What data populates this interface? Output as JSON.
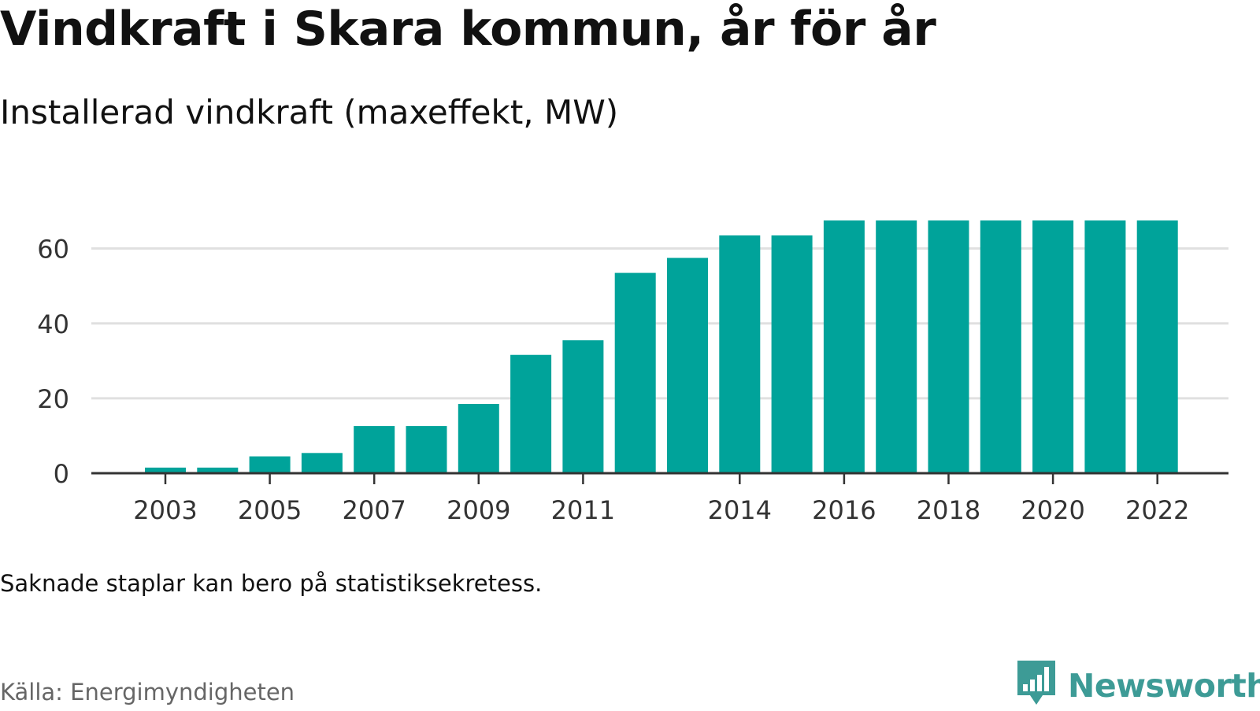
{
  "header": {
    "title": "Vindkraft i Skara kommun, år för år",
    "subtitle": "Installerad vindkraft (maxeffekt, MW)"
  },
  "footer": {
    "note": "Saknade staplar kan bero på statistiksekretess.",
    "source": "Källa: Energimyndigheten",
    "brand": "Newsworthy",
    "brand_icon": "bar-chart-speech-bubble-icon"
  },
  "colors": {
    "bar": "#00a39a",
    "grid": "#e0e0e0",
    "axis": "#333333",
    "brand": "#3d9b96"
  },
  "chart_data": {
    "type": "bar",
    "categories": [
      "2003",
      "2004",
      "2005",
      "2006",
      "2007",
      "2008",
      "2009",
      "2010",
      "2011",
      "2012",
      "2013",
      "2014",
      "2015",
      "2016",
      "2017",
      "2018",
      "2019",
      "2020",
      "2021",
      "2022"
    ],
    "values": [
      1.5,
      1.5,
      4.5,
      5.4,
      12.6,
      12.6,
      18.5,
      31.6,
      35.5,
      53.5,
      57.5,
      63.5,
      63.5,
      67.5,
      67.5,
      67.5,
      67.5,
      67.5,
      67.5,
      67.5
    ],
    "x_tick_labels": [
      "2003",
      "2005",
      "2007",
      "2009",
      "2011",
      "2014",
      "2016",
      "2018",
      "2020",
      "2022"
    ],
    "y_ticks": [
      0,
      20,
      40,
      60
    ],
    "ylim": [
      0,
      67.5
    ],
    "grid": true,
    "xlabel": "",
    "ylabel": ""
  }
}
